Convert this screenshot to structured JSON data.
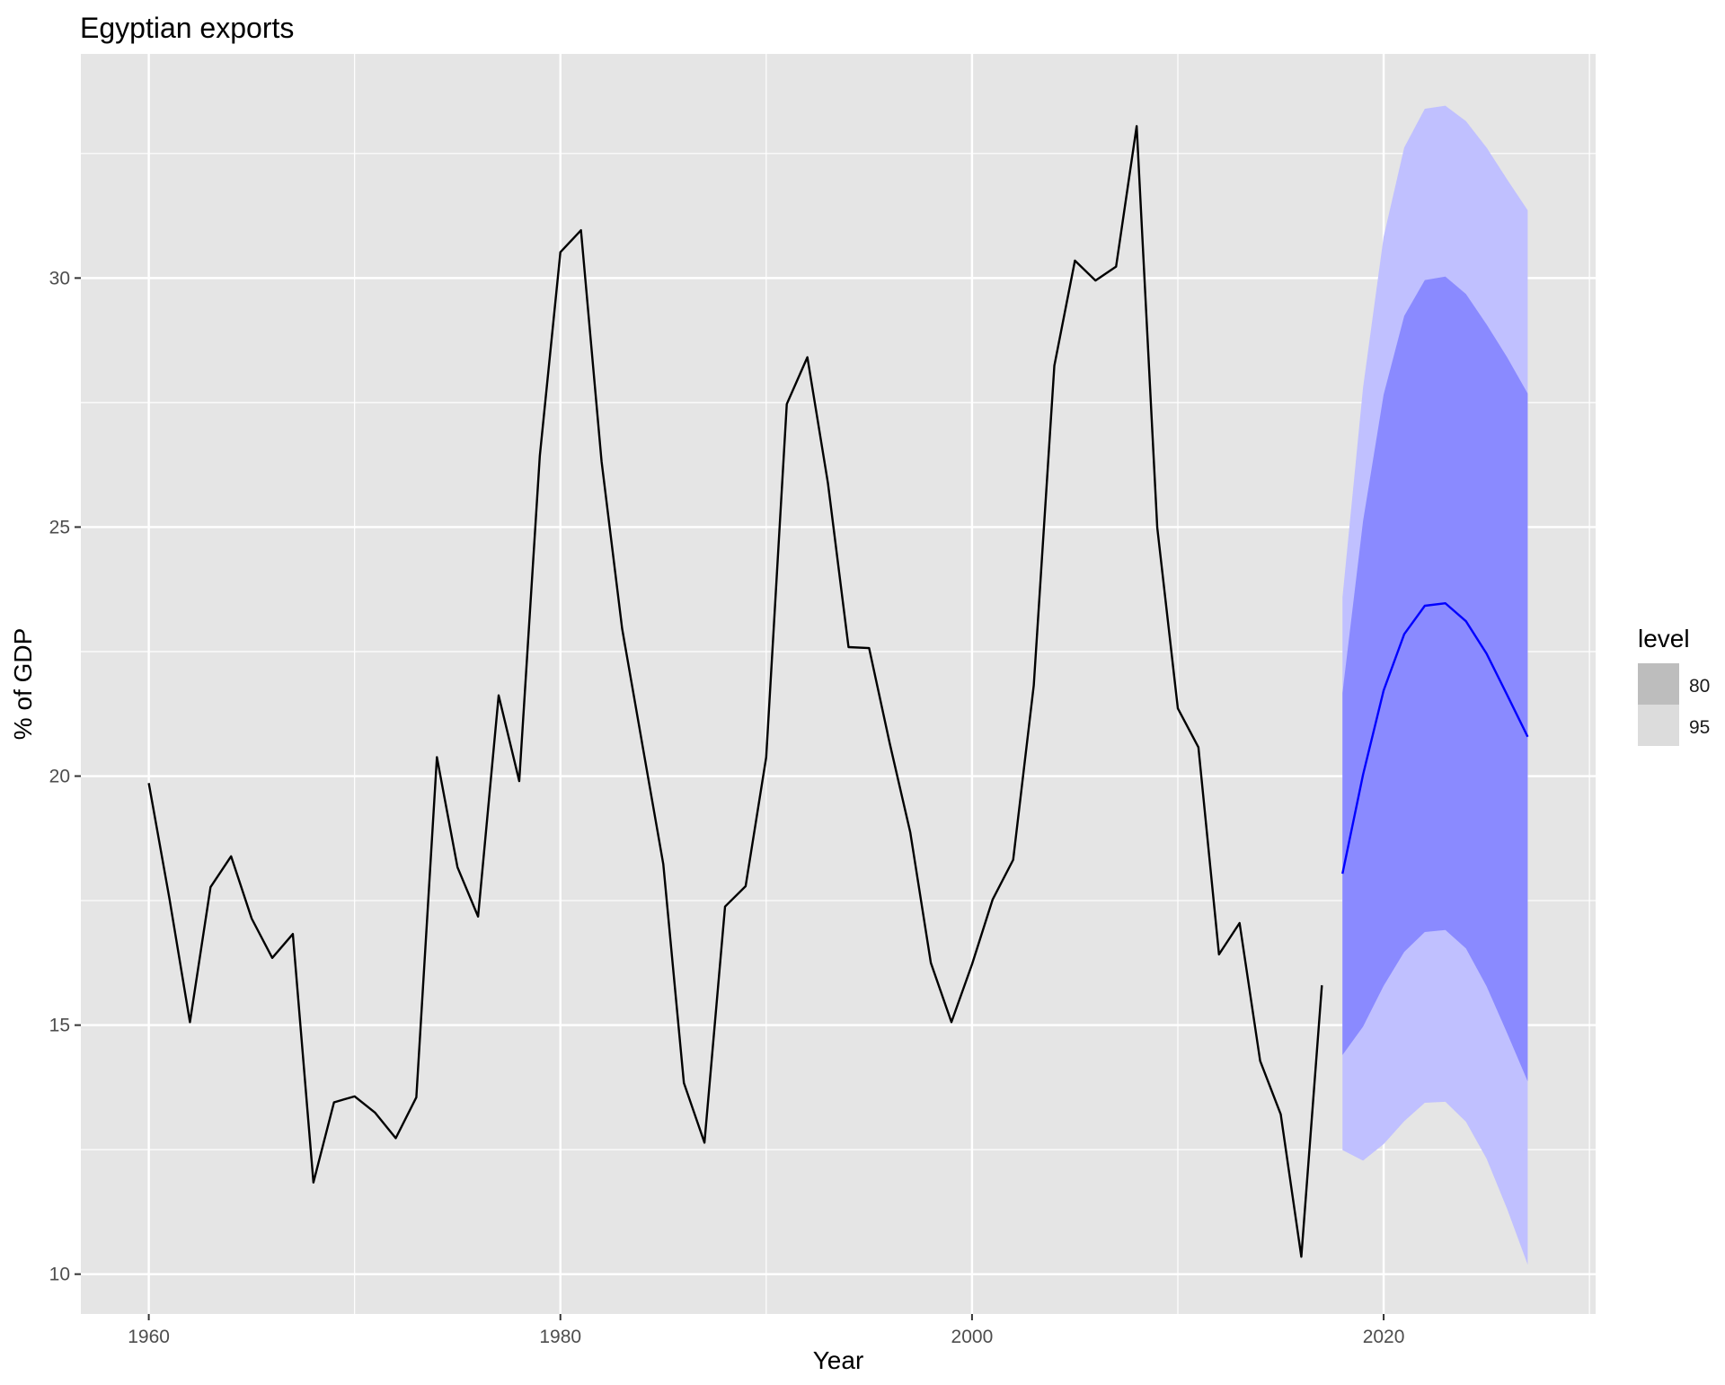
{
  "chart_data": {
    "type": "line",
    "title": "Egyptian exports",
    "xlabel": "Year",
    "ylabel": "% of GDP",
    "xlim": [
      1956.7,
      2030.3
    ],
    "ylim": [
      9.2,
      34.5
    ],
    "x_ticks": [
      1960,
      1980,
      2000,
      2020
    ],
    "x_tick_labels": [
      "1960",
      "1980",
      "2000",
      "2020"
    ],
    "y_ticks": [
      10,
      15,
      20,
      25,
      30
    ],
    "y_tick_labels": [
      "10",
      "15",
      "20",
      "25",
      "30"
    ],
    "grid": true,
    "legend": {
      "title": "level",
      "position": "right",
      "entries": [
        {
          "label": "80",
          "color": "#bdbdbd"
        },
        {
          "label": "95",
          "color": "#dcdcdc"
        }
      ]
    },
    "colors": {
      "panel_background": "#e5e5e5",
      "grid": "#ffffff",
      "history_line": "#000000",
      "forecast_line": "#0000ff",
      "band_80": "#8a8aff",
      "band_95": "#c0c0ff"
    },
    "series": [
      {
        "role": "history",
        "x": [
          1960,
          1961,
          1962,
          1963,
          1964,
          1965,
          1966,
          1967,
          1968,
          1969,
          1970,
          1971,
          1972,
          1973,
          1974,
          1975,
          1976,
          1977,
          1978,
          1979,
          1980,
          1981,
          1982,
          1983,
          1984,
          1985,
          1986,
          1987,
          1988,
          1989,
          1990,
          1991,
          1992,
          1993,
          1994,
          1995,
          1996,
          1997,
          1998,
          1999,
          2000,
          2001,
          2002,
          2003,
          2004,
          2005,
          2006,
          2007,
          2008,
          2009,
          2010,
          2011,
          2012,
          2013,
          2014,
          2015,
          2016,
          2017
        ],
        "values": [
          19.86,
          17.55,
          15.06,
          17.77,
          18.39,
          17.14,
          16.35,
          16.83,
          11.84,
          13.45,
          13.57,
          13.24,
          12.73,
          13.55,
          20.38,
          18.17,
          17.18,
          21.62,
          19.9,
          26.43,
          30.52,
          30.96,
          26.32,
          22.96,
          20.59,
          18.23,
          13.84,
          12.64,
          17.38,
          17.79,
          20.38,
          27.47,
          28.41,
          25.88,
          22.59,
          22.57,
          20.66,
          18.87,
          16.25,
          15.06,
          16.22,
          17.52,
          18.32,
          21.82,
          28.24,
          30.35,
          29.95,
          30.23,
          33.05,
          24.99,
          21.36,
          20.58,
          16.42,
          17.05,
          14.28,
          13.21,
          10.35,
          15.8
        ]
      },
      {
        "role": "forecast",
        "x": [
          2018,
          2019,
          2020,
          2021,
          2022,
          2023,
          2024,
          2025,
          2026,
          2027
        ],
        "values": [
          18.04,
          20.03,
          21.72,
          22.85,
          23.42,
          23.47,
          23.11,
          22.46,
          21.63,
          20.79
        ],
        "lo80": [
          14.4,
          14.97,
          15.79,
          16.47,
          16.87,
          16.91,
          16.54,
          15.78,
          14.84,
          13.87
        ],
        "hi80": [
          21.67,
          25.12,
          27.66,
          29.24,
          29.96,
          30.03,
          29.68,
          29.07,
          28.41,
          27.68
        ],
        "lo95": [
          12.49,
          12.28,
          12.61,
          13.07,
          13.44,
          13.46,
          13.06,
          12.32,
          11.31,
          10.19
        ],
        "hi95": [
          23.59,
          27.8,
          30.83,
          32.62,
          33.4,
          33.46,
          33.15,
          32.62,
          31.98,
          31.36
        ]
      }
    ]
  }
}
